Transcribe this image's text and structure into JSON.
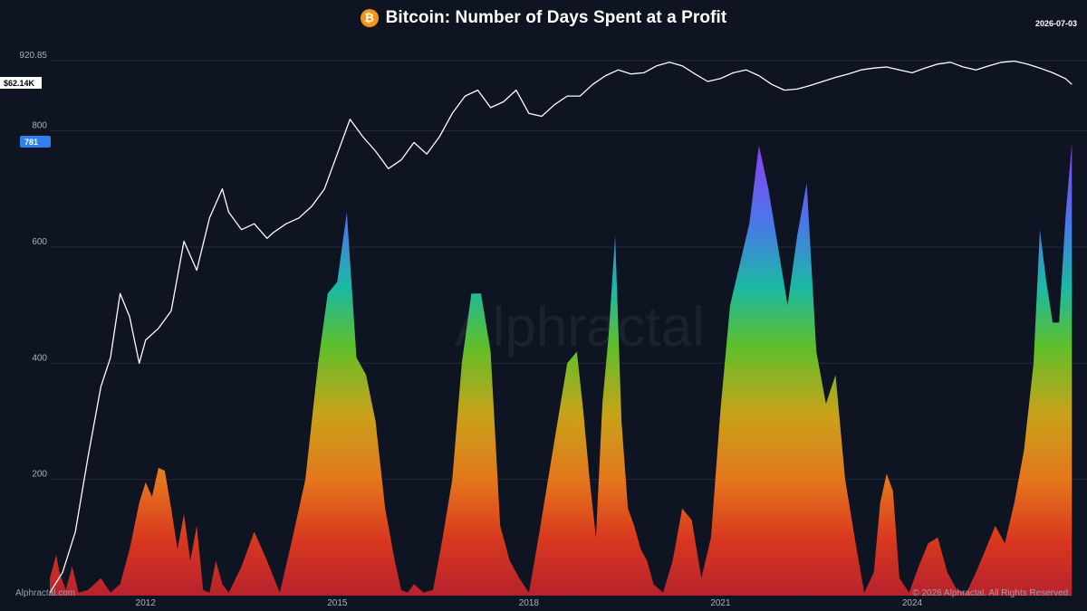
{
  "header": {
    "title": "Bitcoin: Number of Days Spent at a Profit",
    "date": "2026-07-03",
    "btc_icon": "bitcoin-icon",
    "btc_symbol": "₿"
  },
  "footer": {
    "source": "Alphractal.com",
    "copyright": "© 2026 Alphractal. All Rights Reserved."
  },
  "watermark": "Alphractal",
  "colors": {
    "background": "#0e1421",
    "grid": "#232b3a",
    "price_line": "#ffffff",
    "gradient": [
      "#b7232d",
      "#d8361f",
      "#e5741c",
      "#c9a21a",
      "#5fbf2a",
      "#1bb9a3",
      "#4a78e8",
      "#8a3ff0"
    ],
    "badge_days": "#2f80ed",
    "badge_price_bg": "#ffffff",
    "badge_price_text": "#000000",
    "brand": "#f7931a"
  },
  "badges": {
    "price": "$62.14K",
    "days": "781"
  },
  "chart_data": {
    "type": "area",
    "title": "Bitcoin: Number of Days Spent at a Profit",
    "xlabel": "",
    "ylabel": "",
    "x_range": [
      2010.5,
      2026.51
    ],
    "ylim": [
      0,
      920.85
    ],
    "y_ticks": [
      200,
      400,
      600,
      800,
      920.85
    ],
    "y_tick_labels": [
      "200",
      "400",
      "600",
      "800",
      "920.85"
    ],
    "x_ticks": [
      2012,
      2015,
      2018,
      2021,
      2024
    ],
    "x_tick_labels": [
      "2012",
      "2015",
      "2018",
      "2021",
      "2024"
    ],
    "grid": true,
    "legend": "none",
    "series": [
      {
        "kind": "area",
        "x": [
          2010.5,
          2010.6,
          2010.65,
          2010.75,
          2010.85,
          2010.95,
          2011.1,
          2011.3,
          2011.45,
          2011.6,
          2011.75,
          2011.9,
          2012.0,
          2012.1,
          2012.2,
          2012.3,
          2012.4,
          2012.5,
          2012.6,
          2012.7,
          2012.8,
          2012.9,
          2013.0,
          2013.1,
          2013.2,
          2013.3,
          2013.5,
          2013.7,
          2013.9,
          2014.1,
          2014.3,
          2014.5,
          2014.7,
          2014.85,
          2015.0,
          2015.15,
          2015.3,
          2015.45,
          2015.6,
          2015.75,
          2015.9,
          2016.0,
          2016.1,
          2016.2,
          2016.35,
          2016.5,
          2016.65,
          2016.8,
          2016.95,
          2017.1,
          2017.25,
          2017.4,
          2017.55,
          2017.7,
          2017.85,
          2018.0,
          2018.15,
          2018.3,
          2018.45,
          2018.6,
          2018.75,
          2018.85,
          2018.95,
          2019.05,
          2019.15,
          2019.25,
          2019.35,
          2019.45,
          2019.55,
          2019.65,
          2019.75,
          2019.85,
          2019.95,
          2020.1,
          2020.25,
          2020.4,
          2020.55,
          2020.7,
          2020.85,
          2021.0,
          2021.15,
          2021.3,
          2021.45,
          2021.6,
          2021.75,
          2021.9,
          2022.05,
          2022.2,
          2022.35,
          2022.5,
          2022.65,
          2022.8,
          2022.95,
          2023.1,
          2023.25,
          2023.4,
          2023.5,
          2023.6,
          2023.7,
          2023.8,
          2023.95,
          2024.1,
          2024.25,
          2024.4,
          2024.55,
          2024.7,
          2024.85,
          2025.0,
          2025.15,
          2025.3,
          2025.45,
          2025.6,
          2025.75,
          2025.9,
          2026.0,
          2026.1,
          2026.2,
          2026.3,
          2026.4,
          2026.5
        ],
        "values": [
          30,
          70,
          40,
          10,
          50,
          5,
          10,
          30,
          5,
          20,
          80,
          160,
          195,
          170,
          220,
          215,
          150,
          80,
          140,
          60,
          120,
          10,
          5,
          60,
          20,
          5,
          50,
          110,
          60,
          5,
          100,
          200,
          400,
          520,
          540,
          660,
          410,
          380,
          300,
          150,
          60,
          10,
          5,
          20,
          5,
          10,
          100,
          200,
          400,
          520,
          520,
          420,
          120,
          60,
          30,
          5,
          100,
          200,
          300,
          400,
          420,
          320,
          200,
          100,
          330,
          450,
          620,
          300,
          150,
          120,
          80,
          60,
          20,
          5,
          60,
          150,
          130,
          30,
          100,
          320,
          500,
          570,
          640,
          775,
          700,
          600,
          500,
          620,
          710,
          420,
          330,
          380,
          200,
          100,
          5,
          40,
          160,
          210,
          180,
          30,
          5,
          50,
          90,
          100,
          40,
          10,
          5,
          40,
          80,
          120,
          90,
          160,
          250,
          400,
          630,
          540,
          470,
          470,
          650,
          780
        ],
        "name": ""
      },
      {
        "kind": "line",
        "x": [
          2010.5,
          2010.7,
          2010.9,
          2011.1,
          2011.3,
          2011.45,
          2011.6,
          2011.75,
          2011.9,
          2012.0,
          2012.2,
          2012.4,
          2012.6,
          2012.8,
          2013.0,
          2013.2,
          2013.3,
          2013.5,
          2013.7,
          2013.9,
          2014.0,
          2014.2,
          2014.4,
          2014.6,
          2014.8,
          2015.0,
          2015.2,
          2015.4,
          2015.6,
          2015.8,
          2016.0,
          2016.2,
          2016.4,
          2016.6,
          2016.8,
          2017.0,
          2017.2,
          2017.4,
          2017.6,
          2017.8,
          2018.0,
          2018.2,
          2018.4,
          2018.6,
          2018.8,
          2019.0,
          2019.2,
          2019.4,
          2019.6,
          2019.8,
          2020.0,
          2020.2,
          2020.4,
          2020.6,
          2020.8,
          2021.0,
          2021.2,
          2021.4,
          2021.6,
          2021.8,
          2022.0,
          2022.2,
          2022.4,
          2022.6,
          2022.8,
          2023.0,
          2023.2,
          2023.4,
          2023.6,
          2023.8,
          2024.0,
          2024.2,
          2024.4,
          2024.6,
          2024.8,
          2025.0,
          2025.2,
          2025.4,
          2025.6,
          2025.8,
          2026.0,
          2026.2,
          2026.4,
          2026.5
        ],
        "values": [
          5,
          40,
          110,
          240,
          360,
          410,
          520,
          480,
          400,
          440,
          460,
          490,
          610,
          560,
          650,
          700,
          660,
          630,
          640,
          615,
          625,
          640,
          650,
          670,
          700,
          760,
          820,
          790,
          765,
          735,
          750,
          780,
          760,
          790,
          830,
          860,
          870,
          840,
          850,
          870,
          830,
          825,
          845,
          860,
          860,
          880,
          895,
          905,
          898,
          900,
          912,
          918,
          912,
          898,
          885,
          890,
          900,
          905,
          895,
          880,
          870,
          872,
          878,
          885,
          892,
          898,
          905,
          908,
          910,
          905,
          900,
          908,
          915,
          918,
          910,
          905,
          912,
          918,
          920,
          915,
          908,
          900,
          890,
          880
        ],
        "name": ""
      }
    ]
  }
}
